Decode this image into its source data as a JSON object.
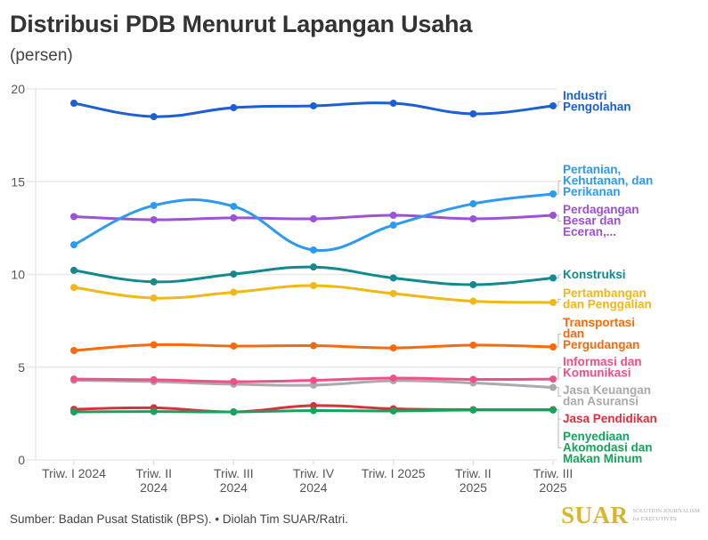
{
  "header": {
    "title": "Distribusi PDB Menurut Lapangan Usaha",
    "subtitle": "(persen)"
  },
  "footer": {
    "source": "Sumber: Badan Pusat Statistik (BPS). • Diolah Tim SUAR/Ratri.",
    "logo_word": "SUAR",
    "logo_tagline_1": "SOLUTION JOURNALISM",
    "logo_tagline_2": "for EXECUTIVES"
  },
  "chart_data": {
    "type": "line",
    "title": "Distribusi PDB Menurut Lapangan Usaha",
    "subtitle": "(persen)",
    "xlabel": "",
    "ylabel": "",
    "ylim": [
      0,
      20
    ],
    "yticks": [
      0,
      5,
      10,
      15,
      20
    ],
    "grid": true,
    "legend": "right, inline labels at line ends",
    "categories": [
      [
        "Triw. I 2024"
      ],
      [
        "Triw. II",
        "2024"
      ],
      [
        "Triw. III",
        "2024"
      ],
      [
        "Triw. IV",
        "2024"
      ],
      [
        "Triw. I 2025"
      ],
      [
        "Triw. II",
        "2025"
      ],
      [
        "Triw. III",
        "2025"
      ]
    ],
    "series": [
      {
        "name": "Industri Pengolahan",
        "label_lines": [
          "Industri",
          "Pengolahan"
        ],
        "color": "#1a5fd6",
        "values": [
          19.23,
          18.51,
          18.99,
          19.09,
          19.23,
          18.66,
          19.09
        ]
      },
      {
        "name": "Pertanian, Kehutanan, dan Perikanan",
        "label_lines": [
          "Pertanian,",
          "Kehutanan, dan",
          "Perikanan"
        ],
        "color": "#2b9af3",
        "values": [
          11.6,
          13.72,
          13.67,
          11.32,
          12.66,
          13.81,
          14.34
        ]
      },
      {
        "name": "Perdagangan Besar dan Eceran,...",
        "label_lines": [
          "Perdagangan",
          "Besar dan",
          "Eceran,..."
        ],
        "color": "#9b51d8",
        "values": [
          13.12,
          12.95,
          13.05,
          13.0,
          13.19,
          13.0,
          13.19
        ]
      },
      {
        "name": "Konstruksi",
        "label_lines": [
          "Konstruksi"
        ],
        "color": "#0f8a8f",
        "values": [
          10.22,
          9.6,
          10.02,
          10.4,
          9.81,
          9.45,
          9.81
        ]
      },
      {
        "name": "Pertambangan dan Penggalian",
        "label_lines": [
          "Pertambangan",
          "dan Penggalian"
        ],
        "color": "#f1b814",
        "values": [
          9.3,
          8.73,
          9.04,
          9.4,
          8.97,
          8.56,
          8.49
        ]
      },
      {
        "name": "Transportasi dan Pergudangan",
        "label_lines": [
          "Transportasi",
          "dan",
          "Pergudangan"
        ],
        "color": "#fa6a0a",
        "values": [
          5.9,
          6.21,
          6.14,
          6.16,
          6.04,
          6.19,
          6.09
        ]
      },
      {
        "name": "Informasi dan Komunikasi",
        "label_lines": [
          "Informasi dan",
          "Komunikasi"
        ],
        "color": "#f0508a",
        "values": [
          4.36,
          4.32,
          4.22,
          4.29,
          4.41,
          4.34,
          4.36
        ]
      },
      {
        "name": "Jasa Keuangan dan Asuransi",
        "label_lines": [
          "Jasa Keuangan",
          "dan Asuransi"
        ],
        "color": "#a9a9ae",
        "values": [
          4.29,
          4.22,
          4.08,
          4.03,
          4.27,
          4.15,
          3.91
        ]
      },
      {
        "name": "Penyediaan Akomodasi dan Makan Minum",
        "label_lines": [
          "Penyediaan",
          "Akomodasi dan",
          "Makan Minum"
        ],
        "color": "#12a55c",
        "values": [
          2.59,
          2.61,
          2.59,
          2.66,
          2.64,
          2.69,
          2.69
        ]
      },
      {
        "name": "Jasa Pendidikan",
        "label_lines": [
          "Jasa Pendidikan"
        ],
        "color": "#dc2f3c",
        "values": [
          2.73,
          2.81,
          2.59,
          2.93,
          2.76,
          2.71,
          2.71
        ]
      }
    ]
  }
}
